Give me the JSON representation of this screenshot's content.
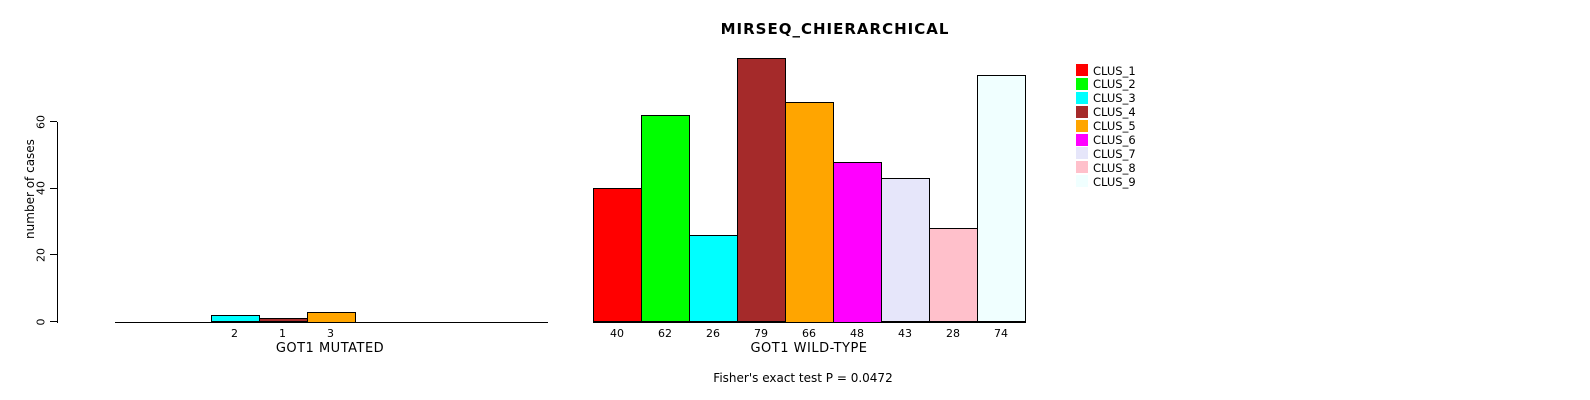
{
  "chart_data": {
    "type": "bar",
    "title": "MIRSEQ_CHIERARCHICAL",
    "ylabel": "number of cases",
    "ylim": [
      0,
      60
    ],
    "yticks": [
      0,
      20,
      40,
      60
    ],
    "grid": false,
    "note": "Fisher's exact test P = 0.0472",
    "categories": [
      "CLUS_1",
      "CLUS_2",
      "CLUS_3",
      "CLUS_4",
      "CLUS_5",
      "CLUS_6",
      "CLUS_7",
      "CLUS_8",
      "CLUS_9"
    ],
    "series": [
      {
        "name": "GOT1 MUTATED",
        "values": [
          0,
          0,
          2,
          1,
          3,
          0,
          0,
          0,
          0
        ]
      },
      {
        "name": "GOT1 WILD-TYPE",
        "values": [
          40,
          62,
          26,
          79,
          66,
          48,
          43,
          28,
          74
        ]
      }
    ],
    "legend": {
      "position": "right",
      "entries": [
        {
          "label": "CLUS_1",
          "color": "#FF0000"
        },
        {
          "label": "CLUS_2",
          "color": "#00FF00"
        },
        {
          "label": "CLUS_3",
          "color": "#00FFFF"
        },
        {
          "label": "CLUS_4",
          "color": "#A52A2A"
        },
        {
          "label": "CLUS_5",
          "color": "#FFA500"
        },
        {
          "label": "CLUS_6",
          "color": "#FF00FF"
        },
        {
          "label": "CLUS_7",
          "color": "#E6E6FA"
        },
        {
          "label": "CLUS_8",
          "color": "#FFC0CB"
        },
        {
          "label": "CLUS_9",
          "color": "#F0FFFF"
        }
      ]
    },
    "axis_color": "#000000",
    "background_color": "#FFFFFF"
  }
}
